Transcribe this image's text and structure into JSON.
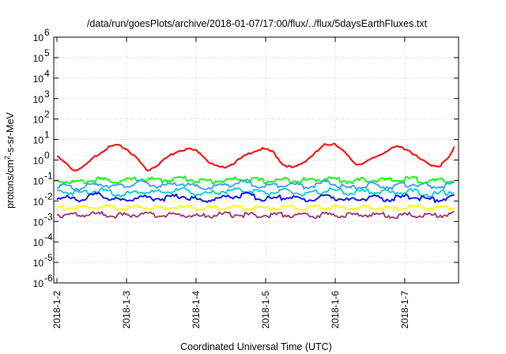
{
  "chart_data": {
    "type": "line",
    "title": "/data/run/goesPlots/archive/2018-01-07/17:00/flux/../flux/5daysEarthFluxes.txt",
    "xlabel": "Coordinated Universal Time (UTC)",
    "ylabel": "protons/cm2-s-sr-MeV",
    "y_scale": "log",
    "ylim": [
      1e-06,
      1000000.0
    ],
    "x_range_days": [
      "2018-1-2",
      "2018-1-7 17:00"
    ],
    "xticks": [
      "2018-1-2",
      "2018-1-3",
      "2018-1-4",
      "2018-1-5",
      "2018-1-6",
      "2018-1-7"
    ],
    "yticks": [
      {
        "base": "10",
        "exp": "-6"
      },
      {
        "base": "10",
        "exp": "-5"
      },
      {
        "base": "10",
        "exp": "-4"
      },
      {
        "base": "10",
        "exp": "-3"
      },
      {
        "base": "10",
        "exp": "-2"
      },
      {
        "base": "10",
        "exp": "-1"
      },
      {
        "base": "10",
        "exp": "0"
      },
      {
        "base": "10",
        "exp": "1"
      },
      {
        "base": "10",
        "exp": "2"
      },
      {
        "base": "10",
        "exp": "3"
      },
      {
        "base": "10",
        "exp": "4"
      },
      {
        "base": "10",
        "exp": "5"
      },
      {
        "base": "10",
        "exp": "6"
      }
    ],
    "grid": true,
    "legend": "none",
    "series": [
      {
        "color": "#ff0000",
        "x": [
          0,
          0.1,
          0.25,
          0.4,
          0.55,
          0.7,
          0.85,
          1.0,
          1.15,
          1.3,
          1.45,
          1.6,
          1.75,
          1.9,
          2.05,
          2.2,
          2.35,
          2.5,
          2.65,
          2.8,
          2.95,
          3.1,
          3.25,
          3.4,
          3.55,
          3.7,
          3.85,
          4.0,
          4.15,
          4.3,
          4.45,
          4.6,
          4.75,
          4.9,
          5.05,
          5.2,
          5.35,
          5.5,
          5.65,
          5.71
        ],
        "values": [
          1.5,
          0.8,
          0.3,
          0.5,
          1.5,
          3.5,
          5.5,
          3.5,
          1.2,
          0.3,
          0.6,
          1.5,
          3.0,
          3.5,
          2.5,
          0.7,
          0.4,
          0.6,
          1.2,
          2.5,
          3.5,
          2.6,
          0.6,
          0.4,
          0.8,
          2.0,
          5.5,
          6.5,
          2.0,
          0.6,
          0.8,
          1.5,
          3.0,
          4.5,
          3.2,
          1.2,
          0.6,
          0.5,
          1.5,
          4.0
        ]
      },
      {
        "color": "#00ff00",
        "x": [
          0,
          0.3,
          0.6,
          0.9,
          1.2,
          1.5,
          1.8,
          2.1,
          2.4,
          2.7,
          3.0,
          3.3,
          3.6,
          3.9,
          4.2,
          4.5,
          4.8,
          5.1,
          5.4,
          5.71
        ],
        "values": [
          0.1,
          0.08,
          0.11,
          0.09,
          0.12,
          0.1,
          0.13,
          0.09,
          0.1,
          0.12,
          0.09,
          0.11,
          0.1,
          0.13,
          0.09,
          0.11,
          0.1,
          0.12,
          0.09,
          0.1
        ]
      },
      {
        "color": "#3399ff",
        "x": [
          0,
          0.3,
          0.6,
          0.9,
          1.2,
          1.5,
          1.8,
          2.1,
          2.4,
          2.7,
          3.0,
          3.3,
          3.6,
          3.9,
          4.2,
          4.5,
          4.8,
          5.1,
          5.4,
          5.71
        ],
        "values": [
          0.06,
          0.04,
          0.07,
          0.05,
          0.08,
          0.05,
          0.07,
          0.04,
          0.06,
          0.08,
          0.05,
          0.07,
          0.05,
          0.08,
          0.04,
          0.06,
          0.05,
          0.07,
          0.05,
          0.06
        ]
      },
      {
        "color": "#00cccc",
        "x": [
          0,
          0.3,
          0.6,
          0.9,
          1.2,
          1.5,
          1.8,
          2.1,
          2.4,
          2.7,
          3.0,
          3.3,
          3.6,
          3.9,
          4.2,
          4.5,
          4.8,
          5.1,
          5.4,
          5.71
        ],
        "values": [
          0.03,
          0.025,
          0.035,
          0.02,
          0.03,
          0.025,
          0.035,
          0.02,
          0.03,
          0.035,
          0.025,
          0.03,
          0.02,
          0.035,
          0.025,
          0.03,
          0.025,
          0.03,
          0.02,
          0.03
        ]
      },
      {
        "color": "#0000ff",
        "x": [
          0,
          0.3,
          0.6,
          0.9,
          1.2,
          1.5,
          1.8,
          2.1,
          2.4,
          2.7,
          3.0,
          3.3,
          3.6,
          3.9,
          4.2,
          4.5,
          4.8,
          5.1,
          5.4,
          5.71
        ],
        "values": [
          0.015,
          0.012,
          0.02,
          0.01,
          0.016,
          0.013,
          0.018,
          0.01,
          0.015,
          0.02,
          0.012,
          0.016,
          0.011,
          0.018,
          0.01,
          0.015,
          0.012,
          0.017,
          0.011,
          0.015
        ]
      },
      {
        "color": "#ffff00",
        "x": [
          0,
          0.3,
          0.6,
          0.9,
          1.2,
          1.5,
          1.8,
          2.1,
          2.4,
          2.7,
          3.0,
          3.3,
          3.6,
          3.9,
          4.2,
          4.5,
          4.8,
          5.1,
          5.4,
          5.71
        ],
        "values": [
          0.005,
          0.0045,
          0.005,
          0.0042,
          0.005,
          0.0046,
          0.005,
          0.0044,
          0.005,
          0.0047,
          0.0045,
          0.005,
          0.0043,
          0.005,
          0.0046,
          0.005,
          0.0044,
          0.005,
          0.0045,
          0.005
        ]
      },
      {
        "color": "#993366",
        "x": [
          0,
          0.3,
          0.6,
          0.9,
          1.2,
          1.5,
          1.8,
          2.1,
          2.4,
          2.7,
          3.0,
          3.3,
          3.6,
          3.9,
          4.2,
          4.5,
          4.8,
          5.1,
          5.4,
          5.71
        ],
        "values": [
          0.0022,
          0.002,
          0.0023,
          0.0019,
          0.0022,
          0.002,
          0.0021,
          0.0018,
          0.0022,
          0.0021,
          0.002,
          0.0022,
          0.0019,
          0.0021,
          0.002,
          0.0022,
          0.0019,
          0.0021,
          0.002,
          0.0022
        ]
      }
    ]
  }
}
